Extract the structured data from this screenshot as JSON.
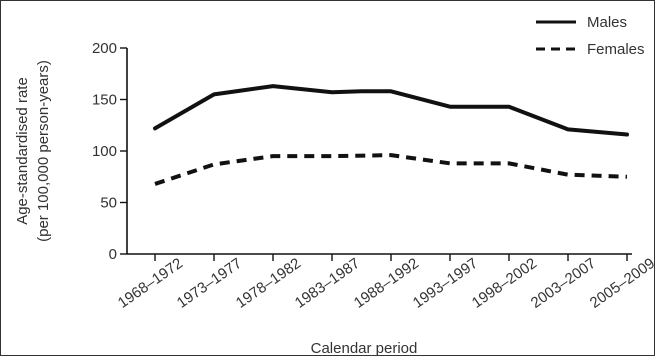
{
  "chart_data": {
    "type": "line",
    "title": "",
    "xlabel": "Calendar period",
    "ylabel": [
      "Age-standardised rate",
      "(per 100,000 person-years)"
    ],
    "ylim": [
      0,
      200
    ],
    "yticks": [
      0,
      50,
      100,
      150,
      200
    ],
    "categories": [
      "1968–1972",
      "1973–1977",
      "1978–1982",
      "1983–1987",
      "1988–1992",
      "1993–1997",
      "1998–2002",
      "2003–2007",
      "2005–2009"
    ],
    "series": [
      {
        "name": "Males",
        "line_style": "solid",
        "color": "#111111",
        "points": [
          {
            "x": 0.0,
            "y": 122
          },
          {
            "x": 1.0,
            "y": 155
          },
          {
            "x": 1.5,
            "y": 159
          },
          {
            "x": 2.0,
            "y": 163
          },
          {
            "x": 3.0,
            "y": 157
          },
          {
            "x": 3.5,
            "y": 158
          },
          {
            "x": 4.0,
            "y": 158
          },
          {
            "x": 5.0,
            "y": 143
          },
          {
            "x": 5.5,
            "y": 143
          },
          {
            "x": 6.0,
            "y": 143
          },
          {
            "x": 7.0,
            "y": 121
          },
          {
            "x": 8.0,
            "y": 116
          }
        ]
      },
      {
        "name": "Females",
        "line_style": "dashed",
        "color": "#111111",
        "points": [
          {
            "x": 0.0,
            "y": 68
          },
          {
            "x": 1.0,
            "y": 87
          },
          {
            "x": 2.0,
            "y": 95
          },
          {
            "x": 3.0,
            "y": 95
          },
          {
            "x": 4.0,
            "y": 96
          },
          {
            "x": 5.0,
            "y": 88
          },
          {
            "x": 6.0,
            "y": 88
          },
          {
            "x": 7.0,
            "y": 77
          },
          {
            "x": 8.0,
            "y": 75
          }
        ]
      }
    ],
    "legend_position": "top-right",
    "grid": false
  }
}
